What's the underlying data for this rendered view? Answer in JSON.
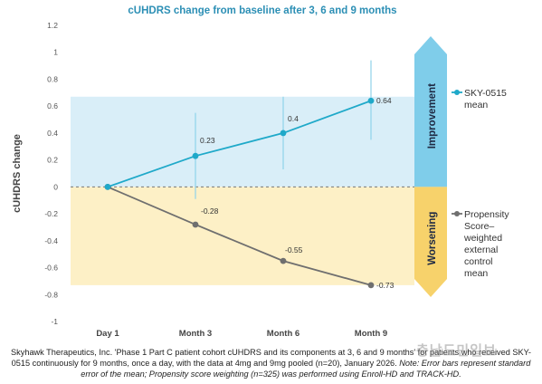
{
  "colors": {
    "sky_series": "#1fa9c9",
    "control_series": "#6f6f6f",
    "improvement_band": "#d9eef8",
    "worsening_band": "#fdf0c6",
    "improvement_arrow": "#7fcdea",
    "worsening_arrow": "#f7d26b",
    "error_bar": "#8fd3ea"
  },
  "chart_data": {
    "type": "line",
    "title": "cUHDRS change from baseline after 3, 6 and 9 months",
    "ylabel": "cUHDRS change",
    "xlabel": "",
    "categories": [
      "Day 1",
      "Month 3",
      "Month 6",
      "Month 9"
    ],
    "ylim": [
      -1,
      1.2
    ],
    "yticks": [
      -1,
      -0.8,
      -0.6,
      -0.4,
      -0.2,
      0,
      0.2,
      0.4,
      0.6,
      0.8,
      1,
      1.2
    ],
    "ytick_labels": [
      "-1",
      "-0.8",
      "-0.6",
      "-0.4",
      "-0.2",
      "0",
      "0.2",
      "0.4",
      "0.6",
      "0.8",
      "1",
      "1.2"
    ],
    "bands": [
      {
        "label": "Improvement",
        "from": 0,
        "to": 0.67
      },
      {
        "label": "Worsening",
        "from": -0.73,
        "to": 0
      }
    ],
    "series": [
      {
        "name": "SKY-0515 mean",
        "legend_lines": [
          "SKY-0515",
          "mean"
        ],
        "values": [
          0,
          0.23,
          0.4,
          0.64
        ],
        "data_labels": [
          "",
          "0.23",
          "0.4",
          "0.64"
        ],
        "error_low": [
          null,
          -0.09,
          0.13,
          0.35
        ],
        "error_high": [
          null,
          0.55,
          0.67,
          0.94
        ]
      },
      {
        "name": "Propensity Score–weighted external control mean",
        "legend_lines": [
          "Propensity",
          "Score–",
          "weighted",
          "external",
          "control",
          "mean"
        ],
        "values": [
          0,
          -0.28,
          -0.55,
          -0.73
        ],
        "data_labels": [
          "",
          "-0.28",
          "-0.55",
          "-0.73"
        ]
      }
    ],
    "grid": false,
    "legend": "right"
  },
  "caption": {
    "text": "Skyhawk Therapeutics, Inc. 'Phase 1 Part C patient cohort cUHDRS and its components at 3, 6 and 9 months' for patients who received SKY-0515 continuously for 9 months, once a day, with the data at 4mg and 9mg pooled (n=20), January 2026.",
    "note": "Note: Error bars represent standard error of the mean; Propensity score weighting (n=325) was performed using Enroll-HD and TRACK-HD."
  },
  "watermark": "충남도민일보"
}
